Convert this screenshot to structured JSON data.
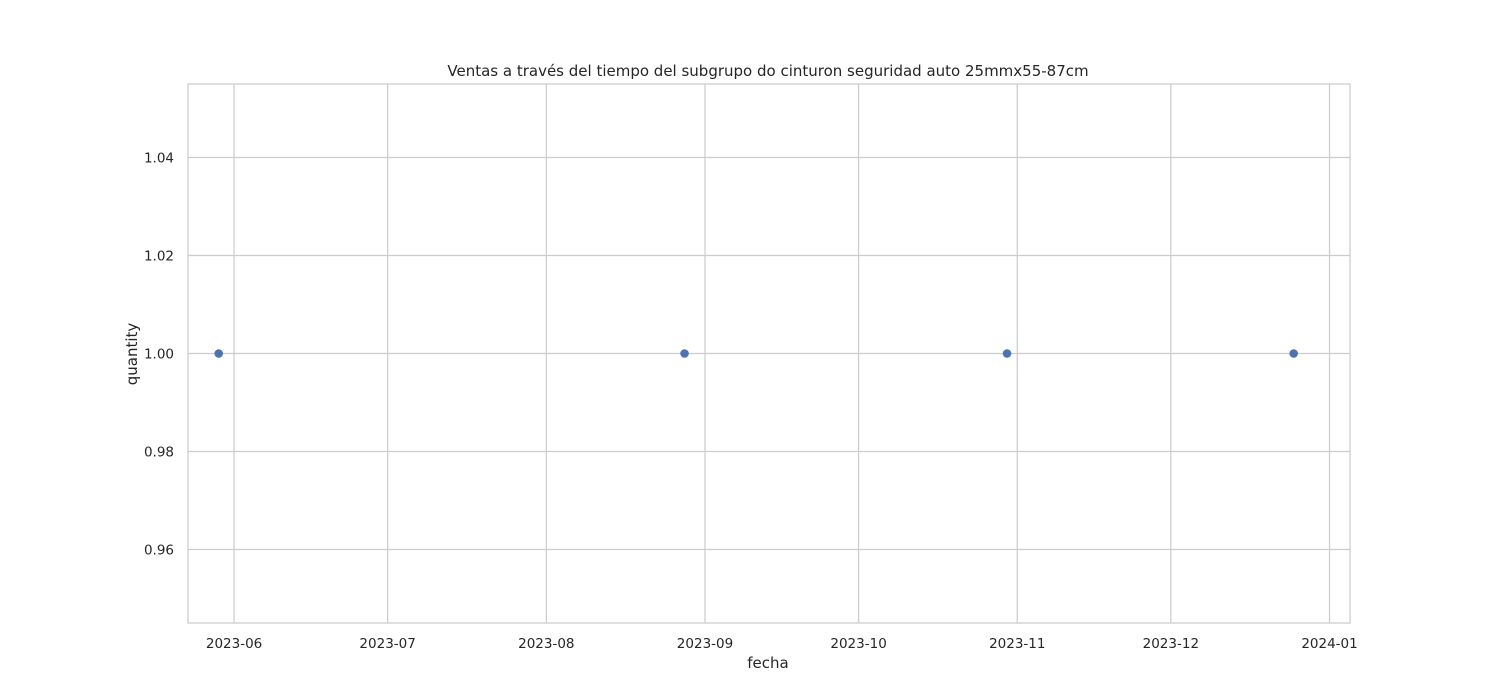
{
  "chart_data": {
    "type": "scatter",
    "title": "Ventas a través del tiempo del subgrupo do cinturon seguridad auto 25mmx55-87cm",
    "xlabel": "fecha",
    "ylabel": "quantity",
    "x_axis_type": "date",
    "xlim": [
      "2023-05-23",
      "2024-01-05"
    ],
    "ylim": [
      0.945,
      1.055
    ],
    "x_ticks": [
      "2023-06-01",
      "2023-07-01",
      "2023-08-01",
      "2023-09-01",
      "2023-10-01",
      "2023-11-01",
      "2023-12-01",
      "2024-01-01"
    ],
    "x_tick_labels": [
      "2023-06",
      "2023-07",
      "2023-08",
      "2023-09",
      "2023-10",
      "2023-11",
      "2023-12",
      "2024-01"
    ],
    "y_ticks": [
      0.96,
      0.98,
      1.0,
      1.02,
      1.04
    ],
    "y_tick_labels": [
      "0.96",
      "0.98",
      "1.00",
      "1.02",
      "1.04"
    ],
    "grid": true,
    "series": [
      {
        "color": "#4c72b0",
        "points": [
          {
            "x": "2023-05-29",
            "y": 1.0
          },
          {
            "x": "2023-08-28",
            "y": 1.0
          },
          {
            "x": "2023-10-30",
            "y": 1.0
          },
          {
            "x": "2023-12-25",
            "y": 1.0
          }
        ]
      }
    ]
  }
}
